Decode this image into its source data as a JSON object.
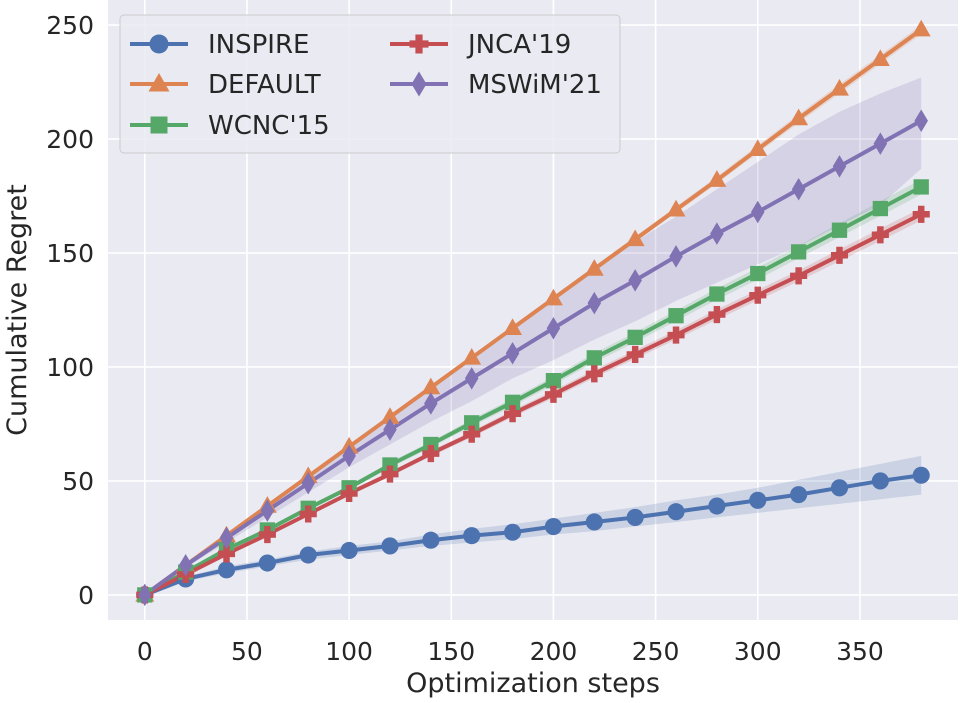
{
  "chart_data": {
    "type": "line",
    "title": "",
    "xlabel": "Optimization steps",
    "ylabel": "Cumulative Regret",
    "xlim": [
      -18,
      398
    ],
    "ylim": [
      -11,
      261
    ],
    "xticks": [
      0,
      50,
      100,
      150,
      200,
      250,
      300,
      350
    ],
    "yticks": [
      0,
      50,
      100,
      150,
      200,
      250
    ],
    "grid": true,
    "legend_position": "top-left",
    "x": [
      0,
      20,
      40,
      60,
      80,
      100,
      120,
      140,
      160,
      180,
      200,
      220,
      240,
      260,
      280,
      300,
      320,
      340,
      360,
      380
    ],
    "series": [
      {
        "name": "INSPIRE",
        "color": "#4c72b0",
        "marker": "circle",
        "values": [
          0,
          7,
          11,
          14,
          17.5,
          19.5,
          21.5,
          24,
          26,
          27.5,
          30,
          32,
          34,
          36.5,
          39,
          41.5,
          44,
          47,
          50,
          52.5
        ],
        "band_lower": [
          0,
          6,
          9.5,
          12.5,
          15.5,
          17.5,
          19.5,
          21.5,
          23,
          24.5,
          26.5,
          28,
          30,
          32,
          34,
          36,
          38,
          40,
          42,
          44
        ],
        "band_upper": [
          0,
          8,
          12.5,
          15.5,
          19,
          21.5,
          23.5,
          26.5,
          29,
          31,
          33.5,
          36,
          38.5,
          41.5,
          44,
          47,
          50.5,
          54,
          57.5,
          61
        ]
      },
      {
        "name": "DEFAULT",
        "color": "#dd8452",
        "marker": "triangle",
        "values": [
          0,
          13,
          26,
          39,
          52,
          65,
          78,
          91,
          104,
          117,
          130,
          143,
          156,
          169,
          182,
          195.5,
          209,
          222,
          235,
          248
        ],
        "band_lower": [
          0,
          12.8,
          25.7,
          38.6,
          51.5,
          64.4,
          77.3,
          90.2,
          103.1,
          116,
          128.9,
          141.8,
          154.7,
          167.6,
          180.5,
          193.8,
          207.1,
          220,
          233,
          246
        ],
        "band_upper": [
          0,
          13.2,
          26.3,
          39.4,
          52.5,
          65.6,
          78.7,
          91.8,
          104.9,
          118,
          131.1,
          144.2,
          157.3,
          170.4,
          183.5,
          197.2,
          210.9,
          224,
          237,
          250
        ]
      },
      {
        "name": "WCNC'15",
        "color": "#55a868",
        "marker": "square",
        "values": [
          0,
          10,
          20,
          28.5,
          38,
          47,
          57,
          66,
          75.5,
          84.5,
          94,
          104,
          113,
          122.5,
          132,
          141,
          150.5,
          160,
          169.5,
          179
        ],
        "band_lower": [
          0,
          9.7,
          19.5,
          27.8,
          37.2,
          46,
          55.8,
          64.7,
          74,
          82.8,
          92.2,
          102,
          110.8,
          120.2,
          129.5,
          138.4,
          147.7,
          157,
          166.3,
          175.7
        ],
        "band_upper": [
          0,
          10.3,
          20.5,
          29.2,
          38.8,
          48,
          58.2,
          67.3,
          77,
          86.2,
          95.8,
          106,
          115.2,
          124.8,
          134.5,
          143.6,
          153.3,
          163,
          172.7,
          182.3
        ]
      },
      {
        "name": "JNCA'19",
        "color": "#c44e52",
        "marker": "plus",
        "values": [
          0,
          9,
          18,
          26.5,
          35.5,
          44.5,
          53,
          62,
          70.5,
          79.5,
          88,
          97,
          105.5,
          114,
          123,
          131.5,
          140,
          149,
          158,
          167
        ],
        "band_lower": [
          0,
          8.8,
          17.6,
          26,
          34.8,
          43.6,
          52,
          60.8,
          69.2,
          78,
          86.4,
          95.2,
          103.6,
          112,
          120.8,
          129.2,
          137.6,
          146.4,
          155.3,
          164.3
        ],
        "band_upper": [
          0,
          9.2,
          18.4,
          27,
          36.2,
          45.4,
          54,
          63.2,
          71.8,
          81,
          89.6,
          98.8,
          107.4,
          116,
          125.2,
          133.8,
          142.4,
          151.6,
          160.7,
          169.7
        ]
      },
      {
        "name": "MSWiM'21",
        "color": "#8172b3",
        "marker": "diamond",
        "values": [
          0,
          13,
          25,
          37,
          49,
          61,
          72.5,
          84,
          95,
          106,
          117,
          128,
          138,
          148.5,
          158.5,
          168,
          178,
          188,
          198,
          208
        ],
        "band_lower": [
          0,
          12,
          23,
          34,
          45,
          56,
          66,
          76,
          85,
          95,
          103,
          112,
          120,
          129,
          137,
          145,
          153,
          162,
          171,
          187
        ],
        "band_upper": [
          0,
          14,
          27,
          40,
          53,
          66,
          79,
          92,
          104,
          117,
          130,
          143,
          155,
          166,
          178,
          190,
          202,
          212,
          220,
          227
        ]
      }
    ]
  }
}
